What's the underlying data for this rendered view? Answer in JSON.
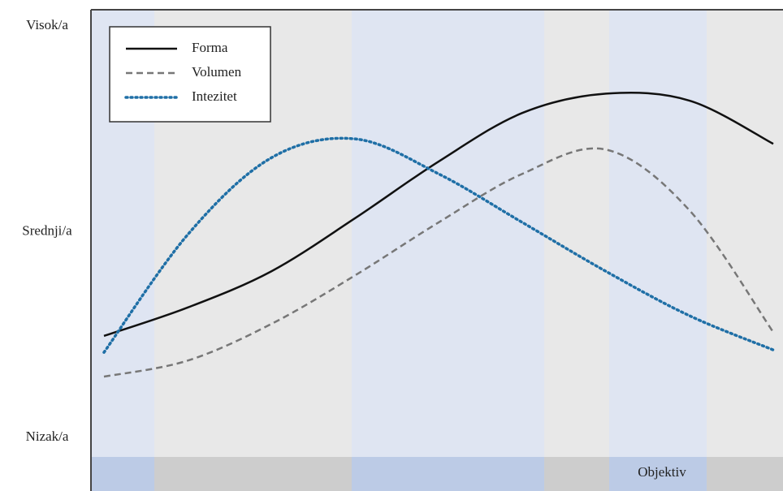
{
  "chart_data": {
    "type": "line",
    "annotation": "Objektiv",
    "categories": [
      null,
      null,
      null,
      null,
      null,
      null,
      null,
      null,
      null
    ],
    "series": [
      {
        "name": "Forma",
        "color": "#111111",
        "style": "solid",
        "values": [
          24.7,
          31.6,
          40.4,
          53.3,
          67.1,
          78.9,
          83.6,
          81.9,
          71.4
        ]
      },
      {
        "name": "Volumen",
        "color": "#777777",
        "style": "dashed",
        "values": [
          14.8,
          18.7,
          27.6,
          39.4,
          52.3,
          64.1,
          70.0,
          55.2,
          25.6
        ]
      },
      {
        "name": "Intezitet",
        "color": "#1f6fa6",
        "style": "dotted",
        "values": [
          20.7,
          49.3,
          68.0,
          72.6,
          64.1,
          52.3,
          40.4,
          29.6,
          21.3
        ]
      }
    ],
    "ylim": [
      -13,
      104
    ],
    "yticks": [
      {
        "value": 0,
        "label": "Nizak/a"
      },
      {
        "value": 50,
        "label": "Srednji/a"
      },
      {
        "value": 100,
        "label": "Visok/a"
      }
    ],
    "legend": "top-left",
    "grid": false
  }
}
